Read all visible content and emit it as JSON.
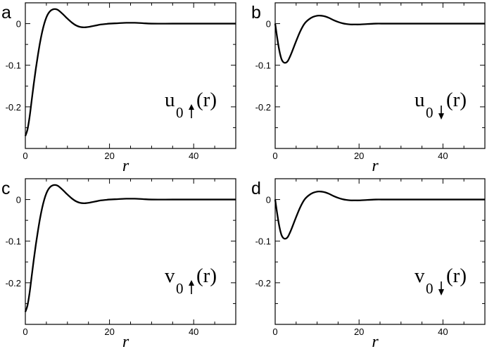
{
  "chart_data": [
    {
      "type": "line",
      "panel_letter": "a",
      "xlabel": "r",
      "ylabel": "",
      "xlim": [
        0,
        50
      ],
      "ylim": [
        -0.3,
        0.05
      ],
      "x_ticks": [
        0,
        20,
        40
      ],
      "y_ticks": [
        0,
        -0.1,
        -0.2
      ],
      "x_tick_labels": [
        "0",
        "20",
        "40"
      ],
      "y_tick_labels": [
        "0",
        "-0.1",
        "-0.2"
      ],
      "annotation": {
        "base": "u",
        "subscript": "0",
        "arrow": "up",
        "arg": "(r)"
      },
      "series": [
        {
          "x": [
            0,
            0.5,
            1,
            1.5,
            2,
            2.5,
            3,
            3.5,
            4,
            4.5,
            5,
            5.5,
            6,
            6.5,
            7,
            7.5,
            8,
            9,
            10,
            11,
            12,
            13,
            14,
            15,
            16,
            17,
            18,
            19,
            20,
            22,
            24,
            25,
            26,
            28,
            30,
            35,
            40,
            45,
            50
          ],
          "y": [
            -0.27,
            -0.255,
            -0.225,
            -0.185,
            -0.145,
            -0.108,
            -0.075,
            -0.045,
            -0.02,
            0.0,
            0.015,
            0.025,
            0.031,
            0.034,
            0.035,
            0.034,
            0.031,
            0.022,
            0.012,
            0.003,
            -0.004,
            -0.008,
            -0.009,
            -0.008,
            -0.006,
            -0.004,
            -0.002,
            -0.001,
            0.0,
            0.001,
            0.002,
            0.002,
            0.002,
            0.001,
            0.0,
            0.0,
            0.0,
            0.0,
            0.0
          ]
        }
      ]
    },
    {
      "type": "line",
      "panel_letter": "b",
      "xlabel": "r",
      "ylabel": "",
      "xlim": [
        0,
        50
      ],
      "ylim": [
        -0.3,
        0.05
      ],
      "x_ticks": [
        0,
        20,
        40
      ],
      "y_ticks": [
        0,
        -0.1,
        -0.2
      ],
      "x_tick_labels": [
        "0",
        "20",
        "40"
      ],
      "y_tick_labels": [
        "0",
        "-0.1",
        "-0.2"
      ],
      "annotation": {
        "base": "u",
        "subscript": "0",
        "arrow": "down",
        "arg": "(r)"
      },
      "series": [
        {
          "x": [
            0,
            0.5,
            1,
            1.5,
            2,
            2.5,
            3,
            3.5,
            4,
            5,
            6,
            7,
            8,
            9,
            10,
            11,
            12,
            13,
            14,
            15,
            16,
            17,
            18,
            19,
            20,
            22,
            24,
            26,
            28,
            30,
            35,
            40,
            45,
            50
          ],
          "y": [
            0.0,
            -0.035,
            -0.065,
            -0.085,
            -0.093,
            -0.094,
            -0.09,
            -0.08,
            -0.068,
            -0.042,
            -0.018,
            0.0,
            0.01,
            0.016,
            0.019,
            0.019,
            0.017,
            0.013,
            0.008,
            0.004,
            0.001,
            -0.001,
            -0.002,
            -0.002,
            -0.002,
            -0.001,
            0.0,
            0.0,
            0.0,
            0.0,
            0.0,
            0.0,
            0.0,
            0.0
          ]
        }
      ]
    },
    {
      "type": "line",
      "panel_letter": "c",
      "xlabel": "r",
      "ylabel": "",
      "xlim": [
        0,
        50
      ],
      "ylim": [
        -0.3,
        0.05
      ],
      "x_ticks": [
        0,
        20,
        40
      ],
      "y_ticks": [
        0,
        -0.1,
        -0.2
      ],
      "x_tick_labels": [
        "0",
        "20",
        "40"
      ],
      "y_tick_labels": [
        "0",
        "-0.1",
        "-0.2"
      ],
      "annotation": {
        "base": "v",
        "subscript": "0",
        "arrow": "up",
        "arg": "(r)"
      },
      "series": [
        {
          "x": [
            0,
            0.5,
            1,
            1.5,
            2,
            2.5,
            3,
            3.5,
            4,
            4.5,
            5,
            5.5,
            6,
            6.5,
            7,
            7.5,
            8,
            9,
            10,
            11,
            12,
            13,
            14,
            15,
            16,
            17,
            18,
            19,
            20,
            22,
            24,
            25,
            26,
            28,
            30,
            35,
            40,
            45,
            50
          ],
          "y": [
            -0.27,
            -0.255,
            -0.225,
            -0.185,
            -0.145,
            -0.108,
            -0.075,
            -0.045,
            -0.02,
            0.0,
            0.015,
            0.025,
            0.031,
            0.034,
            0.035,
            0.034,
            0.031,
            0.022,
            0.012,
            0.003,
            -0.004,
            -0.008,
            -0.009,
            -0.008,
            -0.006,
            -0.004,
            -0.002,
            -0.001,
            0.0,
            0.001,
            0.002,
            0.002,
            0.002,
            0.001,
            0.0,
            0.0,
            0.0,
            0.0,
            0.0
          ]
        }
      ]
    },
    {
      "type": "line",
      "panel_letter": "d",
      "xlabel": "r",
      "ylabel": "",
      "xlim": [
        0,
        50
      ],
      "ylim": [
        -0.3,
        0.05
      ],
      "x_ticks": [
        0,
        20,
        40
      ],
      "y_ticks": [
        0,
        -0.1,
        -0.2
      ],
      "x_tick_labels": [
        "0",
        "20",
        "40"
      ],
      "y_tick_labels": [
        "0",
        "-0.1",
        "-0.2"
      ],
      "annotation": {
        "base": "v",
        "subscript": "0",
        "arrow": "down",
        "arg": "(r)"
      },
      "series": [
        {
          "x": [
            0,
            0.5,
            1,
            1.5,
            2,
            2.5,
            3,
            3.5,
            4,
            5,
            6,
            7,
            8,
            9,
            10,
            11,
            12,
            13,
            14,
            15,
            16,
            17,
            18,
            19,
            20,
            22,
            24,
            26,
            28,
            30,
            35,
            40,
            45,
            50
          ],
          "y": [
            0.0,
            -0.035,
            -0.065,
            -0.085,
            -0.093,
            -0.094,
            -0.09,
            -0.08,
            -0.068,
            -0.042,
            -0.018,
            0.0,
            0.01,
            0.016,
            0.019,
            0.019,
            0.017,
            0.013,
            0.008,
            0.004,
            0.001,
            -0.001,
            -0.002,
            -0.002,
            -0.002,
            -0.001,
            0.0,
            0.0,
            0.0,
            0.0,
            0.0,
            0.0,
            0.0,
            0.0
          ]
        }
      ]
    }
  ],
  "style": {
    "line_color": "#000000",
    "axis_color": "#000000",
    "background": "#ffffff"
  }
}
